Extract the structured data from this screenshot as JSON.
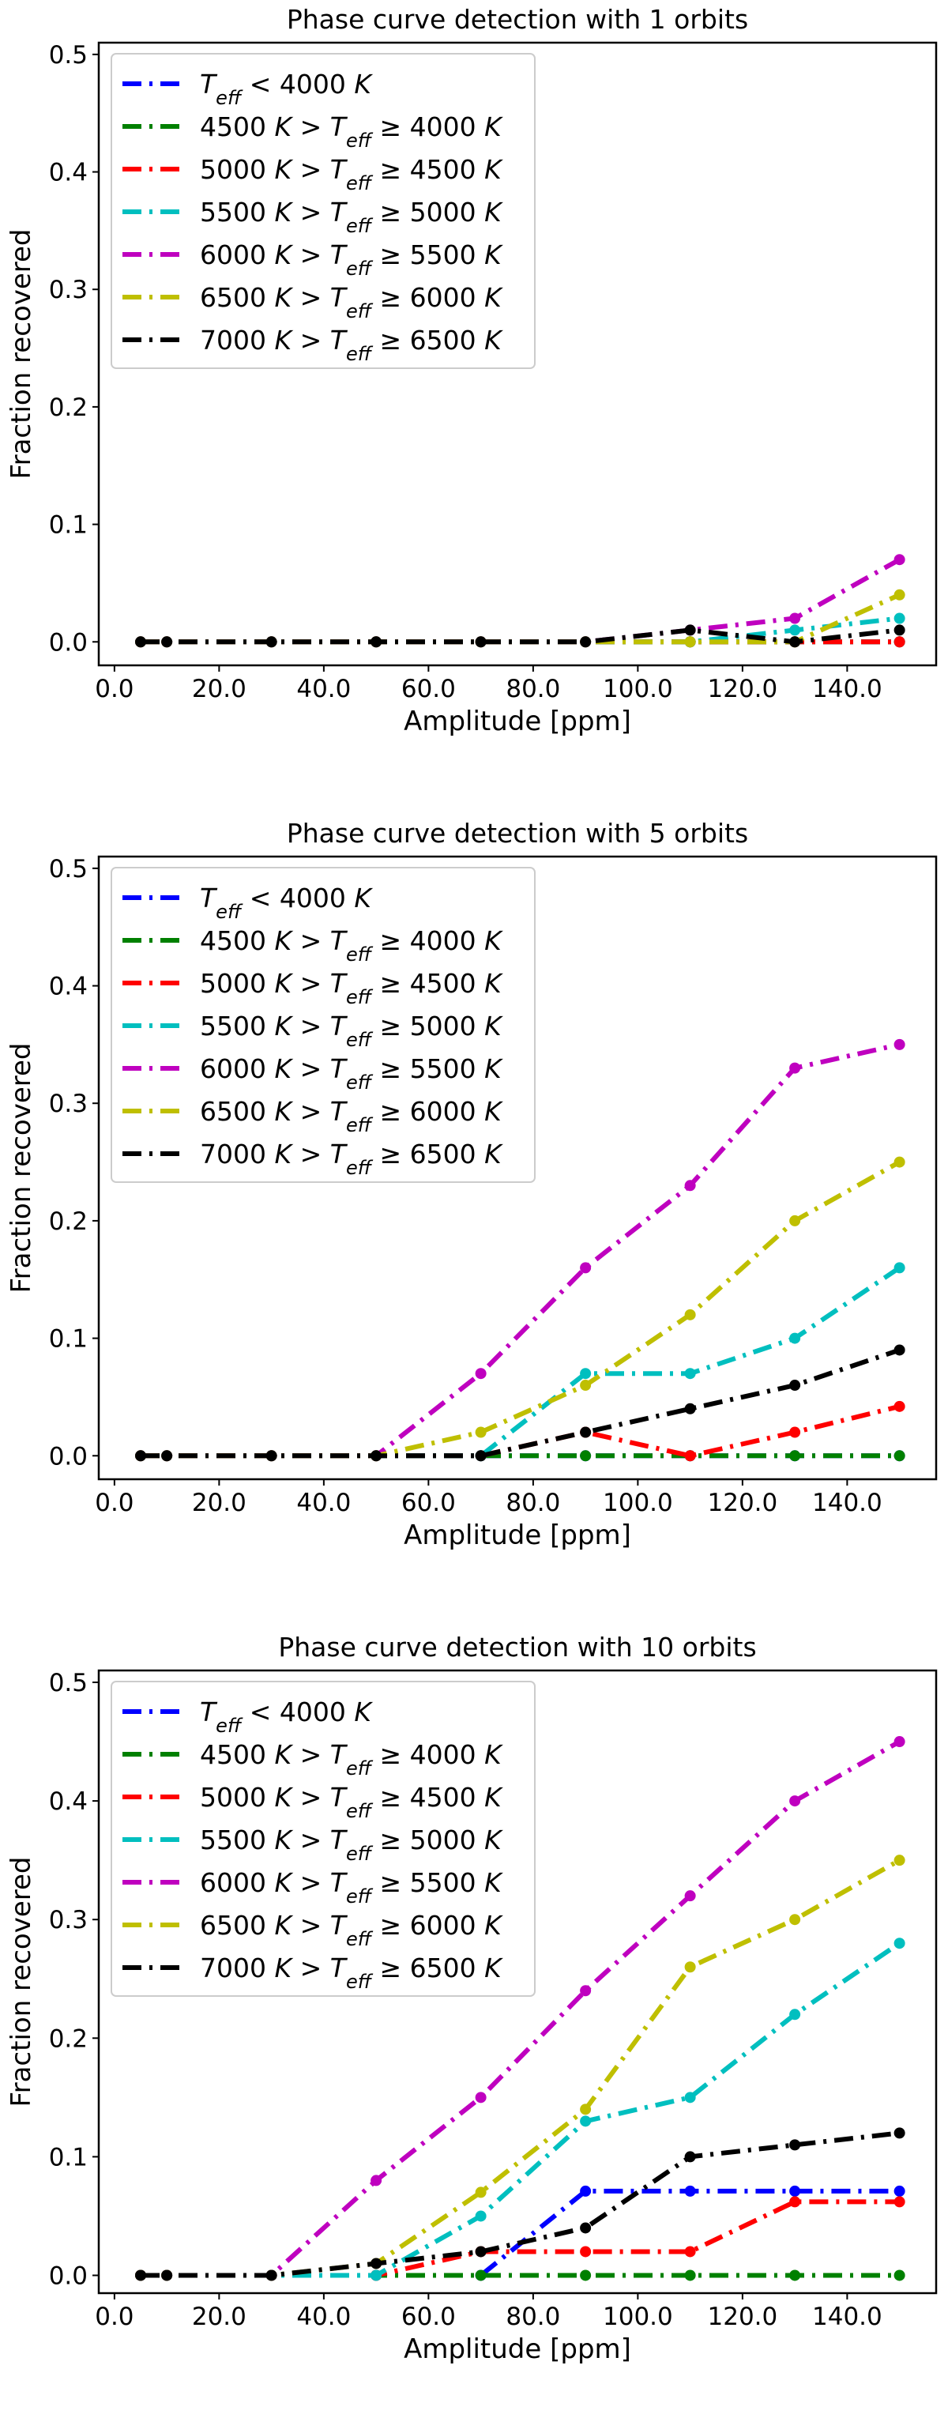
{
  "chart_data": [
    {
      "type": "line",
      "title": "Phase curve detection with 1 orbits",
      "xlabel": "Amplitude [ppm]",
      "ylabel": "Fraction recovered",
      "x": [
        5,
        10,
        30,
        50,
        70,
        90,
        110,
        130,
        150
      ],
      "xlim": [
        -3,
        157
      ],
      "ylim": [
        -0.02,
        0.51
      ],
      "xticks": [
        0,
        20,
        40,
        60,
        80,
        100,
        120,
        140
      ],
      "xtick_labels": [
        "0.0",
        "20.0",
        "40.0",
        "60.0",
        "80.0",
        "100.0",
        "120.0",
        "140.0"
      ],
      "yticks": [
        0,
        0.1,
        0.2,
        0.3,
        0.4,
        0.5
      ],
      "ytick_labels": [
        "0.0",
        "0.1",
        "0.2",
        "0.3",
        "0.4",
        "0.5"
      ],
      "grid": false,
      "legend_position": "top-left",
      "series": [
        {
          "color": "#0000ff",
          "values": [
            0,
            0,
            0,
            0,
            0,
            0,
            0,
            0,
            0
          ]
        },
        {
          "color": "#008000",
          "values": [
            0,
            0,
            0,
            0,
            0,
            0,
            0,
            0,
            0
          ]
        },
        {
          "color": "#ff0000",
          "values": [
            0,
            0,
            0,
            0,
            0,
            0,
            0,
            0,
            0
          ]
        },
        {
          "color": "#00bfbf",
          "values": [
            0,
            0,
            0,
            0,
            0,
            0,
            0,
            0.01,
            0.02
          ]
        },
        {
          "color": "#bf00bf",
          "values": [
            0,
            0,
            0,
            0,
            0,
            0,
            0.01,
            0.02,
            0.07
          ]
        },
        {
          "color": "#bfbf00",
          "values": [
            0,
            0,
            0,
            0,
            0,
            0,
            0,
            0,
            0.04
          ]
        },
        {
          "color": "#000000",
          "values": [
            0,
            0,
            0,
            0,
            0,
            0,
            0.01,
            0,
            0.01
          ]
        }
      ]
    },
    {
      "type": "line",
      "title": "Phase curve detection with 5 orbits",
      "xlabel": "Amplitude [ppm]",
      "ylabel": "Fraction recovered",
      "x": [
        5,
        10,
        30,
        50,
        70,
        90,
        110,
        130,
        150
      ],
      "xlim": [
        -3,
        157
      ],
      "ylim": [
        -0.02,
        0.51
      ],
      "xticks": [
        0,
        20,
        40,
        60,
        80,
        100,
        120,
        140
      ],
      "xtick_labels": [
        "0.0",
        "20.0",
        "40.0",
        "60.0",
        "80.0",
        "100.0",
        "120.0",
        "140.0"
      ],
      "yticks": [
        0,
        0.1,
        0.2,
        0.3,
        0.4,
        0.5
      ],
      "ytick_labels": [
        "0.0",
        "0.1",
        "0.2",
        "0.3",
        "0.4",
        "0.5"
      ],
      "grid": false,
      "legend_position": "top-left",
      "series": [
        {
          "color": "#0000ff",
          "values": [
            0,
            0,
            0,
            0,
            0,
            0,
            0,
            0,
            0
          ]
        },
        {
          "color": "#008000",
          "values": [
            0,
            0,
            0,
            0,
            0,
            0,
            0,
            0,
            0
          ]
        },
        {
          "color": "#ff0000",
          "values": [
            0,
            0,
            0,
            0,
            0,
            0.02,
            0,
            0.02,
            0.042
          ]
        },
        {
          "color": "#00bfbf",
          "values": [
            0,
            0,
            0,
            0,
            0,
            0.07,
            0.07,
            0.1,
            0.16
          ]
        },
        {
          "color": "#bf00bf",
          "values": [
            0,
            0,
            0,
            0,
            0.07,
            0.16,
            0.23,
            0.33,
            0.35
          ]
        },
        {
          "color": "#bfbf00",
          "values": [
            0,
            0,
            0,
            0,
            0.02,
            0.06,
            0.12,
            0.2,
            0.25
          ]
        },
        {
          "color": "#000000",
          "values": [
            0,
            0,
            0,
            0,
            0,
            0.02,
            0.04,
            0.06,
            0.09
          ]
        }
      ]
    },
    {
      "type": "line",
      "title": "Phase curve detection with 10 orbits",
      "xlabel": "Amplitude [ppm]",
      "ylabel": "Fraction recovered",
      "x": [
        5,
        10,
        30,
        50,
        70,
        90,
        110,
        130,
        150
      ],
      "xlim": [
        -3,
        157
      ],
      "ylim": [
        -0.015,
        0.51
      ],
      "xticks": [
        0,
        20,
        40,
        60,
        80,
        100,
        120,
        140
      ],
      "xtick_labels": [
        "0.0",
        "20.0",
        "40.0",
        "60.0",
        "80.0",
        "100.0",
        "120.0",
        "140.0"
      ],
      "yticks": [
        0,
        0.1,
        0.2,
        0.3,
        0.4,
        0.5
      ],
      "ytick_labels": [
        "0.0",
        "0.1",
        "0.2",
        "0.3",
        "0.4",
        "0.5"
      ],
      "grid": false,
      "legend_position": "top-left",
      "series": [
        {
          "color": "#0000ff",
          "values": [
            0,
            0,
            0,
            0,
            0,
            0.071,
            0.071,
            0.071,
            0.071
          ]
        },
        {
          "color": "#008000",
          "values": [
            0,
            0,
            0,
            0,
            0,
            0,
            0,
            0,
            0
          ]
        },
        {
          "color": "#ff0000",
          "values": [
            0,
            0,
            0,
            0,
            0.02,
            0.02,
            0.02,
            0.062,
            0.062
          ]
        },
        {
          "color": "#00bfbf",
          "values": [
            0,
            0,
            0,
            0,
            0.05,
            0.13,
            0.15,
            0.22,
            0.28
          ]
        },
        {
          "color": "#bf00bf",
          "values": [
            0,
            0,
            0,
            0.08,
            0.15,
            0.24,
            0.32,
            0.4,
            0.45
          ]
        },
        {
          "color": "#bfbf00",
          "values": [
            0,
            0,
            0,
            0.01,
            0.07,
            0.14,
            0.26,
            0.3,
            0.35
          ]
        },
        {
          "color": "#000000",
          "values": [
            0,
            0,
            0,
            0.01,
            0.02,
            0.04,
            0.1,
            0.11,
            0.12
          ]
        }
      ]
    }
  ],
  "legend": [
    {
      "tex": "T_eff < 4000 K",
      "parts": [
        {
          "t": "T",
          "i": true
        },
        {
          "t": "eff",
          "i": true,
          "sub": true
        },
        {
          "t": " < 4000 "
        },
        {
          "t": "K",
          "i": true
        }
      ]
    },
    {
      "tex": "4500 K > T_eff ≥ 4000 K",
      "parts": [
        {
          "t": "4500 "
        },
        {
          "t": "K",
          "i": true
        },
        {
          "t": " > "
        },
        {
          "t": "T",
          "i": true
        },
        {
          "t": "eff",
          "i": true,
          "sub": true
        },
        {
          "t": " ≥ 4000 "
        },
        {
          "t": "K",
          "i": true
        }
      ]
    },
    {
      "tex": "5000 K > T_eff ≥ 4500 K",
      "parts": [
        {
          "t": "5000 "
        },
        {
          "t": "K",
          "i": true
        },
        {
          "t": " > "
        },
        {
          "t": "T",
          "i": true
        },
        {
          "t": "eff",
          "i": true,
          "sub": true
        },
        {
          "t": " ≥ 4500 "
        },
        {
          "t": "K",
          "i": true
        }
      ]
    },
    {
      "tex": "5500 K > T_eff ≥ 5000 K",
      "parts": [
        {
          "t": "5500 "
        },
        {
          "t": "K",
          "i": true
        },
        {
          "t": " > "
        },
        {
          "t": "T",
          "i": true
        },
        {
          "t": "eff",
          "i": true,
          "sub": true
        },
        {
          "t": " ≥ 5000 "
        },
        {
          "t": "K",
          "i": true
        }
      ]
    },
    {
      "tex": "6000 K > T_eff ≥ 5500 K",
      "parts": [
        {
          "t": "6000 "
        },
        {
          "t": "K",
          "i": true
        },
        {
          "t": " > "
        },
        {
          "t": "T",
          "i": true
        },
        {
          "t": "eff",
          "i": true,
          "sub": true
        },
        {
          "t": " ≥ 5500 "
        },
        {
          "t": "K",
          "i": true
        }
      ]
    },
    {
      "tex": "6500 K > T_eff ≥ 6000 K",
      "parts": [
        {
          "t": "6500 "
        },
        {
          "t": "K",
          "i": true
        },
        {
          "t": " > "
        },
        {
          "t": "T",
          "i": true
        },
        {
          "t": "eff",
          "i": true,
          "sub": true
        },
        {
          "t": " ≥ 6000 "
        },
        {
          "t": "K",
          "i": true
        }
      ]
    },
    {
      "tex": "7000 K > T_eff ≥ 6500 K",
      "parts": [
        {
          "t": "7000 "
        },
        {
          "t": "K",
          "i": true
        },
        {
          "t": " > "
        },
        {
          "t": "T",
          "i": true
        },
        {
          "t": "eff",
          "i": true,
          "sub": true
        },
        {
          "t": " ≥ 6500 "
        },
        {
          "t": "K",
          "i": true
        }
      ]
    }
  ]
}
